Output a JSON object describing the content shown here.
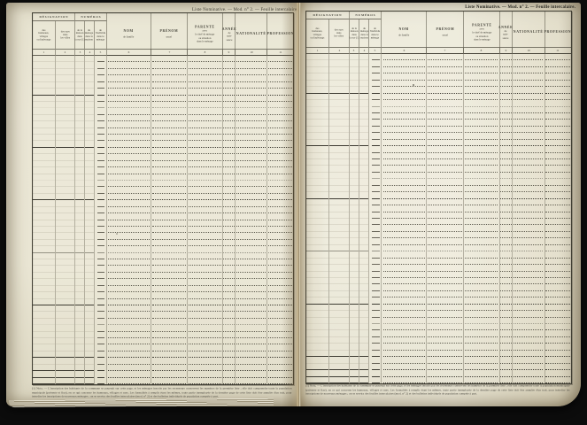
{
  "scan": {
    "background_color": "#0c0c0c",
    "paper_color": "#e9e5d3",
    "ink_color": "#45433a"
  },
  "pages": [
    {
      "side": "left",
      "running_head": "Liste Nominative. — Mod. n° 2. — Feuille intercalaire.",
      "footnote": "(1) Nota. — L'inscription des habitants de la commune se poursuit sur cette page, et les ménages inscrits par les recenseurs conservent les numéros de la première liste ; elle doit comprendre toute la population municipale (présente et fixe), en ce qui concerne les hameaux, villages et rues. Les formalités à remplir étant les mêmes, toute partie inemployée de la dernière page de cette liste doit être annulée d'un trait, pour interdire les inscriptions de nouveaux ménages ; on se servira des feuilles intercalaires (mod. n° 2) et des bulletins individuels de population comptée à part."
    },
    {
      "side": "right",
      "running_head": "Liste Nominative. — Mod. n° 2. — Feuille intercalaire.",
      "footnote": "(1) Nota. — L'inscription des habitants de la commune se poursuit sur cette page, et les ménages inscrits par les recenseurs conservent les numéros de la première liste ; elle doit comprendre toute la population municipale (présente et fixe), en ce qui concerne les hameaux, villages et rues. Les formalités à remplir étant les mêmes, toute partie inemployée de la dernière page de cette liste doit être annulée d'un trait, pour interdire les inscriptions de nouveaux ménages ; on se servira des feuilles intercalaires (mod. n° 2) et des bulletins individuels de population comptée à part."
    }
  ],
  "table": {
    "groups": [
      {
        "label": "DÉSIGNATION",
        "from": 1,
        "to": 2
      },
      {
        "label": "NUMÉROS",
        "from": 3,
        "to": 5
      }
    ],
    "columns": [
      {
        "num": "1",
        "label": "des hameaux, villages ou faubourgs",
        "lines": [
          "des",
          "hameaux,",
          "villages",
          "ou faubourgs"
        ]
      },
      {
        "num": "2",
        "label": "des rues dans les villes",
        "lines": [
          "des rues",
          "dans",
          "les villes"
        ]
      },
      {
        "num": "3",
        "label": "de la maison dans la rue (1)",
        "lines": [
          "de la",
          "maison",
          "dans",
          "la rue (1)"
        ]
      },
      {
        "num": "4",
        "label": "du ménage dans la maison",
        "lines": [
          "du",
          "ménage",
          "dans la",
          "maison"
        ]
      },
      {
        "num": "5",
        "label": "de l'individu dans le ménage",
        "lines": [
          "de",
          "l'individu",
          "dans le",
          "ménage"
        ]
      },
      {
        "num": "6",
        "label": "NOM de famille",
        "lines": [
          "NOM",
          "de famille"
        ]
      },
      {
        "num": "7",
        "label": "PRÉNOM usuel",
        "lines": [
          "PRÉNOM",
          "usuel"
        ]
      },
      {
        "num": "8",
        "label": "PARENTÉ avec le chef de ménage ou situation dans le ménage",
        "lines": [
          "PARENTÉ",
          "avec",
          "le chef de ménage",
          "ou situation",
          "dans le ménage"
        ]
      },
      {
        "num": "9",
        "label": "ANNÉE de naissance",
        "lines": [
          "ANNÉE",
          "de",
          "nais-",
          "sance"
        ]
      },
      {
        "num": "10",
        "label": "NATIONALITÉ",
        "lines": [
          "NATIONALITÉ"
        ]
      },
      {
        "num": "11",
        "label": "PROFESSION",
        "lines": [
          "PROFESSION"
        ]
      }
    ],
    "body_rows": 50
  }
}
